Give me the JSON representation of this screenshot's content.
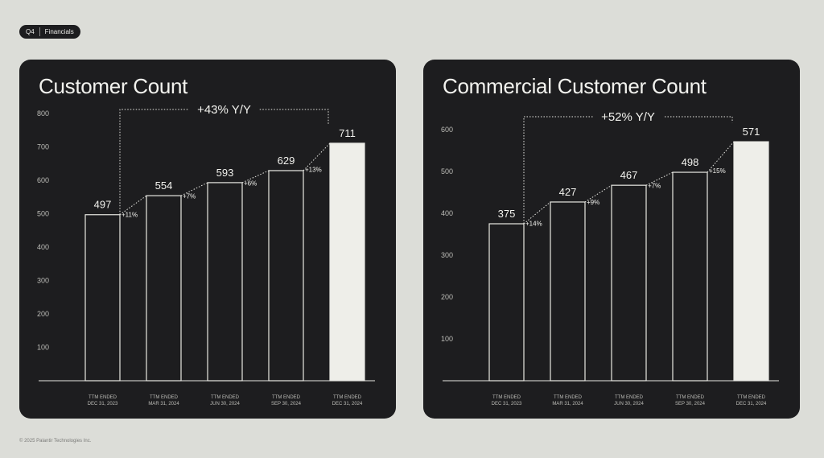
{
  "header": {
    "quarter_label": "Q4",
    "section_label": "Financials"
  },
  "footer": {
    "copyright": "© 2025 Palantir Technologies Inc."
  },
  "colors": {
    "page_background": "#dcddd8",
    "card_background": "#1d1d1f",
    "bar_outline": "#e8e8e3",
    "highlight_bar_fill": "#eeeee9",
    "text": "#f2f2ee",
    "muted_text": "#bdbdb8"
  },
  "chart_data": [
    {
      "type": "bar",
      "title": "Customer Count",
      "categories": [
        "TTM ENDED\nDEC 31, 2023",
        "TTM ENDED\nMAR 31, 2024",
        "TTM ENDED\nJUN 30, 2024",
        "TTM ENDED\nSEP 30, 2024",
        "TTM ENDED\nDEC 31, 2024"
      ],
      "values": [
        497,
        554,
        593,
        629,
        711
      ],
      "data_labels": [
        "497",
        "554",
        "593",
        "629",
        "711"
      ],
      "growth_labels": [
        "+11%",
        "+7%",
        "+6%",
        "+13%"
      ],
      "yoy_label": "+43% Y/Y",
      "y_ticks": [
        100,
        200,
        300,
        400,
        500,
        600,
        700,
        800
      ],
      "ylim": [
        0,
        800
      ],
      "highlight_index": 4,
      "grid": false,
      "legend": "none"
    },
    {
      "type": "bar",
      "title": "Commercial Customer Count",
      "categories": [
        "TTM ENDED\nDEC 31, 2023",
        "TTM ENDED\nMAR 31, 2024",
        "TTM ENDED\nJUN 30, 2024",
        "TTM ENDED\nSEP 30, 2024",
        "TTM ENDED\nDEC 31, 2024"
      ],
      "values": [
        375,
        427,
        467,
        498,
        571
      ],
      "data_labels": [
        "375",
        "427",
        "467",
        "498",
        "571"
      ],
      "growth_labels": [
        "+14%",
        "+9%",
        "+7%",
        "+15%"
      ],
      "yoy_label": "+52% Y/Y",
      "y_ticks": [
        100,
        200,
        300,
        400,
        500,
        600
      ],
      "ylim": [
        0,
        600
      ],
      "highlight_index": 4,
      "grid": false,
      "legend": "none"
    }
  ]
}
